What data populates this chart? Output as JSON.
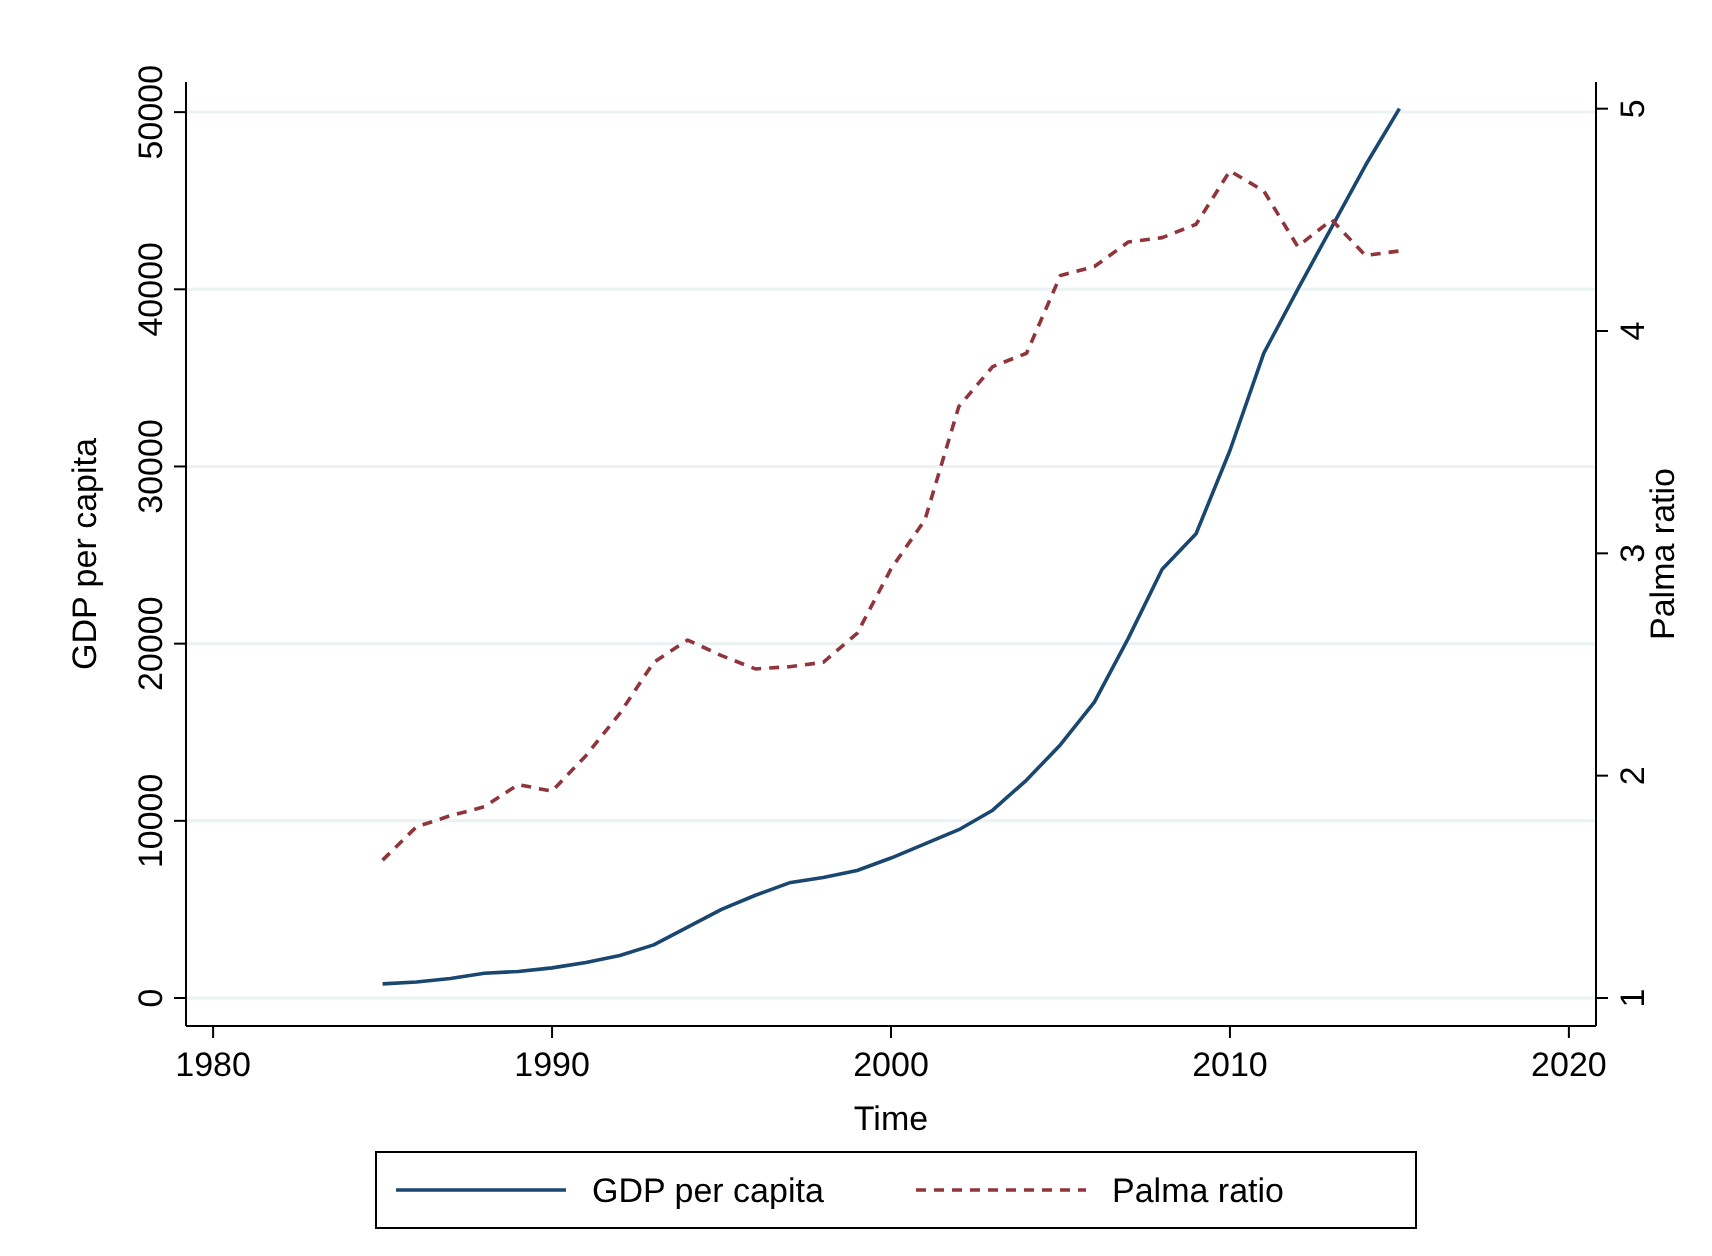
{
  "chart_data": {
    "type": "line",
    "xlabel": "Time",
    "ylabel": "GDP per capita",
    "y2label": "Palma ratio",
    "x": [
      1985,
      1986,
      1987,
      1988,
      1989,
      1990,
      1991,
      1992,
      1993,
      1994,
      1995,
      1996,
      1997,
      1998,
      1999,
      2000,
      2001,
      2002,
      2003,
      2004,
      2005,
      2006,
      2007,
      2008,
      2009,
      2010,
      2011,
      2012,
      2013,
      2014,
      2015
    ],
    "series": [
      {
        "name": "GDP per capita",
        "color": "#1a476f",
        "line_style": "solid",
        "values": [
          800,
          900,
          1100,
          1400,
          1500,
          1700,
          2000,
          2400,
          3000,
          4000,
          5000,
          5800,
          6500,
          6800,
          7200,
          7900,
          8700,
          9500,
          10600,
          12300,
          14300,
          16700,
          20300,
          24200,
          26200,
          30900,
          36400,
          40000,
          43500,
          47000,
          50200
        ]
      },
      {
        "name": "Palma ratio",
        "color": "#90353b",
        "line_style": "dashed",
        "axis": "y2",
        "values": [
          1.62,
          1.77,
          1.82,
          1.86,
          1.96,
          1.93,
          2.09,
          2.28,
          2.51,
          2.61,
          2.54,
          2.48,
          2.49,
          2.51,
          2.64,
          2.93,
          3.15,
          3.66,
          3.84,
          3.9,
          4.25,
          4.29,
          4.4,
          4.42,
          4.48,
          4.72,
          4.63,
          4.38,
          4.5,
          4.34,
          4.36
        ]
      }
    ],
    "xlim": [
      1979.2,
      2020.8
    ],
    "xticks": [
      1980,
      1990,
      2000,
      2010,
      2020
    ],
    "ylim": [
      -1580,
      51700
    ],
    "yticks": [
      0,
      10000,
      20000,
      30000,
      40000,
      50000
    ],
    "y2lim": [
      0.874,
      5.12
    ],
    "y2ticks": [
      1,
      2,
      3,
      4,
      5
    ],
    "grid": "y",
    "legend": "bottom"
  }
}
